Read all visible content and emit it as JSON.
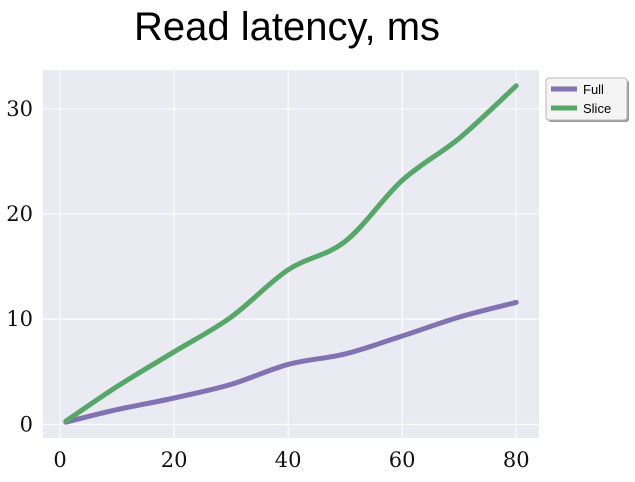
{
  "chart_data": {
    "type": "line",
    "title": "Read latency, ms",
    "xlabel": "",
    "ylabel": "",
    "xlim": [
      -3,
      84
    ],
    "ylim": [
      -1.3,
      33.7
    ],
    "xticks": [
      0,
      20,
      40,
      60,
      80
    ],
    "yticks": [
      0,
      10,
      20,
      30
    ],
    "grid": true,
    "legend_position": "outside-top-right",
    "series": [
      {
        "name": "Full",
        "color": "#8172b2",
        "x": [
          1,
          10,
          20,
          30,
          40,
          50,
          60,
          70,
          80
        ],
        "y": [
          0.2,
          1.4,
          2.5,
          3.8,
          5.7,
          6.7,
          8.4,
          10.2,
          11.6
        ]
      },
      {
        "name": "Slice",
        "color": "#55a868",
        "x": [
          1,
          10,
          20,
          30,
          40,
          50,
          60,
          70,
          80
        ],
        "y": [
          0.3,
          3.6,
          6.9,
          10.2,
          14.7,
          17.4,
          23.2,
          27.2,
          32.2
        ]
      }
    ],
    "background_color": "#eaeaf2",
    "grid_color": "#ffffff"
  }
}
